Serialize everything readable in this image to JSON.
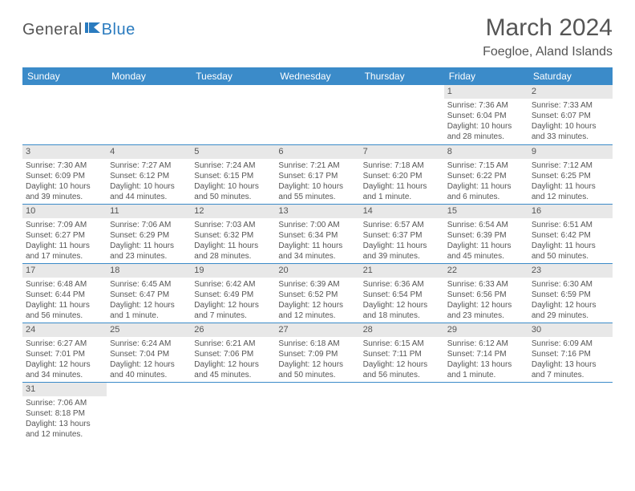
{
  "logo": {
    "general": "General",
    "blue": "Blue"
  },
  "title": "March 2024",
  "location": "Foegloe, Aland Islands",
  "day_headers": [
    "Sunday",
    "Monday",
    "Tuesday",
    "Wednesday",
    "Thursday",
    "Friday",
    "Saturday"
  ],
  "header_bg": "#3b8bc9",
  "header_fg": "#ffffff",
  "daynum_bg": "#e8e8e8",
  "border_color": "#3b8bc9",
  "weeks": [
    [
      {
        "n": "",
        "sunrise": "",
        "sunset": "",
        "daylight": ""
      },
      {
        "n": "",
        "sunrise": "",
        "sunset": "",
        "daylight": ""
      },
      {
        "n": "",
        "sunrise": "",
        "sunset": "",
        "daylight": ""
      },
      {
        "n": "",
        "sunrise": "",
        "sunset": "",
        "daylight": ""
      },
      {
        "n": "",
        "sunrise": "",
        "sunset": "",
        "daylight": ""
      },
      {
        "n": "1",
        "sunrise": "Sunrise: 7:36 AM",
        "sunset": "Sunset: 6:04 PM",
        "daylight": "Daylight: 10 hours and 28 minutes."
      },
      {
        "n": "2",
        "sunrise": "Sunrise: 7:33 AM",
        "sunset": "Sunset: 6:07 PM",
        "daylight": "Daylight: 10 hours and 33 minutes."
      }
    ],
    [
      {
        "n": "3",
        "sunrise": "Sunrise: 7:30 AM",
        "sunset": "Sunset: 6:09 PM",
        "daylight": "Daylight: 10 hours and 39 minutes."
      },
      {
        "n": "4",
        "sunrise": "Sunrise: 7:27 AM",
        "sunset": "Sunset: 6:12 PM",
        "daylight": "Daylight: 10 hours and 44 minutes."
      },
      {
        "n": "5",
        "sunrise": "Sunrise: 7:24 AM",
        "sunset": "Sunset: 6:15 PM",
        "daylight": "Daylight: 10 hours and 50 minutes."
      },
      {
        "n": "6",
        "sunrise": "Sunrise: 7:21 AM",
        "sunset": "Sunset: 6:17 PM",
        "daylight": "Daylight: 10 hours and 55 minutes."
      },
      {
        "n": "7",
        "sunrise": "Sunrise: 7:18 AM",
        "sunset": "Sunset: 6:20 PM",
        "daylight": "Daylight: 11 hours and 1 minute."
      },
      {
        "n": "8",
        "sunrise": "Sunrise: 7:15 AM",
        "sunset": "Sunset: 6:22 PM",
        "daylight": "Daylight: 11 hours and 6 minutes."
      },
      {
        "n": "9",
        "sunrise": "Sunrise: 7:12 AM",
        "sunset": "Sunset: 6:25 PM",
        "daylight": "Daylight: 11 hours and 12 minutes."
      }
    ],
    [
      {
        "n": "10",
        "sunrise": "Sunrise: 7:09 AM",
        "sunset": "Sunset: 6:27 PM",
        "daylight": "Daylight: 11 hours and 17 minutes."
      },
      {
        "n": "11",
        "sunrise": "Sunrise: 7:06 AM",
        "sunset": "Sunset: 6:29 PM",
        "daylight": "Daylight: 11 hours and 23 minutes."
      },
      {
        "n": "12",
        "sunrise": "Sunrise: 7:03 AM",
        "sunset": "Sunset: 6:32 PM",
        "daylight": "Daylight: 11 hours and 28 minutes."
      },
      {
        "n": "13",
        "sunrise": "Sunrise: 7:00 AM",
        "sunset": "Sunset: 6:34 PM",
        "daylight": "Daylight: 11 hours and 34 minutes."
      },
      {
        "n": "14",
        "sunrise": "Sunrise: 6:57 AM",
        "sunset": "Sunset: 6:37 PM",
        "daylight": "Daylight: 11 hours and 39 minutes."
      },
      {
        "n": "15",
        "sunrise": "Sunrise: 6:54 AM",
        "sunset": "Sunset: 6:39 PM",
        "daylight": "Daylight: 11 hours and 45 minutes."
      },
      {
        "n": "16",
        "sunrise": "Sunrise: 6:51 AM",
        "sunset": "Sunset: 6:42 PM",
        "daylight": "Daylight: 11 hours and 50 minutes."
      }
    ],
    [
      {
        "n": "17",
        "sunrise": "Sunrise: 6:48 AM",
        "sunset": "Sunset: 6:44 PM",
        "daylight": "Daylight: 11 hours and 56 minutes."
      },
      {
        "n": "18",
        "sunrise": "Sunrise: 6:45 AM",
        "sunset": "Sunset: 6:47 PM",
        "daylight": "Daylight: 12 hours and 1 minute."
      },
      {
        "n": "19",
        "sunrise": "Sunrise: 6:42 AM",
        "sunset": "Sunset: 6:49 PM",
        "daylight": "Daylight: 12 hours and 7 minutes."
      },
      {
        "n": "20",
        "sunrise": "Sunrise: 6:39 AM",
        "sunset": "Sunset: 6:52 PM",
        "daylight": "Daylight: 12 hours and 12 minutes."
      },
      {
        "n": "21",
        "sunrise": "Sunrise: 6:36 AM",
        "sunset": "Sunset: 6:54 PM",
        "daylight": "Daylight: 12 hours and 18 minutes."
      },
      {
        "n": "22",
        "sunrise": "Sunrise: 6:33 AM",
        "sunset": "Sunset: 6:56 PM",
        "daylight": "Daylight: 12 hours and 23 minutes."
      },
      {
        "n": "23",
        "sunrise": "Sunrise: 6:30 AM",
        "sunset": "Sunset: 6:59 PM",
        "daylight": "Daylight: 12 hours and 29 minutes."
      }
    ],
    [
      {
        "n": "24",
        "sunrise": "Sunrise: 6:27 AM",
        "sunset": "Sunset: 7:01 PM",
        "daylight": "Daylight: 12 hours and 34 minutes."
      },
      {
        "n": "25",
        "sunrise": "Sunrise: 6:24 AM",
        "sunset": "Sunset: 7:04 PM",
        "daylight": "Daylight: 12 hours and 40 minutes."
      },
      {
        "n": "26",
        "sunrise": "Sunrise: 6:21 AM",
        "sunset": "Sunset: 7:06 PM",
        "daylight": "Daylight: 12 hours and 45 minutes."
      },
      {
        "n": "27",
        "sunrise": "Sunrise: 6:18 AM",
        "sunset": "Sunset: 7:09 PM",
        "daylight": "Daylight: 12 hours and 50 minutes."
      },
      {
        "n": "28",
        "sunrise": "Sunrise: 6:15 AM",
        "sunset": "Sunset: 7:11 PM",
        "daylight": "Daylight: 12 hours and 56 minutes."
      },
      {
        "n": "29",
        "sunrise": "Sunrise: 6:12 AM",
        "sunset": "Sunset: 7:14 PM",
        "daylight": "Daylight: 13 hours and 1 minute."
      },
      {
        "n": "30",
        "sunrise": "Sunrise: 6:09 AM",
        "sunset": "Sunset: 7:16 PM",
        "daylight": "Daylight: 13 hours and 7 minutes."
      }
    ],
    [
      {
        "n": "31",
        "sunrise": "Sunrise: 7:06 AM",
        "sunset": "Sunset: 8:18 PM",
        "daylight": "Daylight: 13 hours and 12 minutes."
      },
      {
        "n": "",
        "sunrise": "",
        "sunset": "",
        "daylight": ""
      },
      {
        "n": "",
        "sunrise": "",
        "sunset": "",
        "daylight": ""
      },
      {
        "n": "",
        "sunrise": "",
        "sunset": "",
        "daylight": ""
      },
      {
        "n": "",
        "sunrise": "",
        "sunset": "",
        "daylight": ""
      },
      {
        "n": "",
        "sunrise": "",
        "sunset": "",
        "daylight": ""
      },
      {
        "n": "",
        "sunrise": "",
        "sunset": "",
        "daylight": ""
      }
    ]
  ]
}
